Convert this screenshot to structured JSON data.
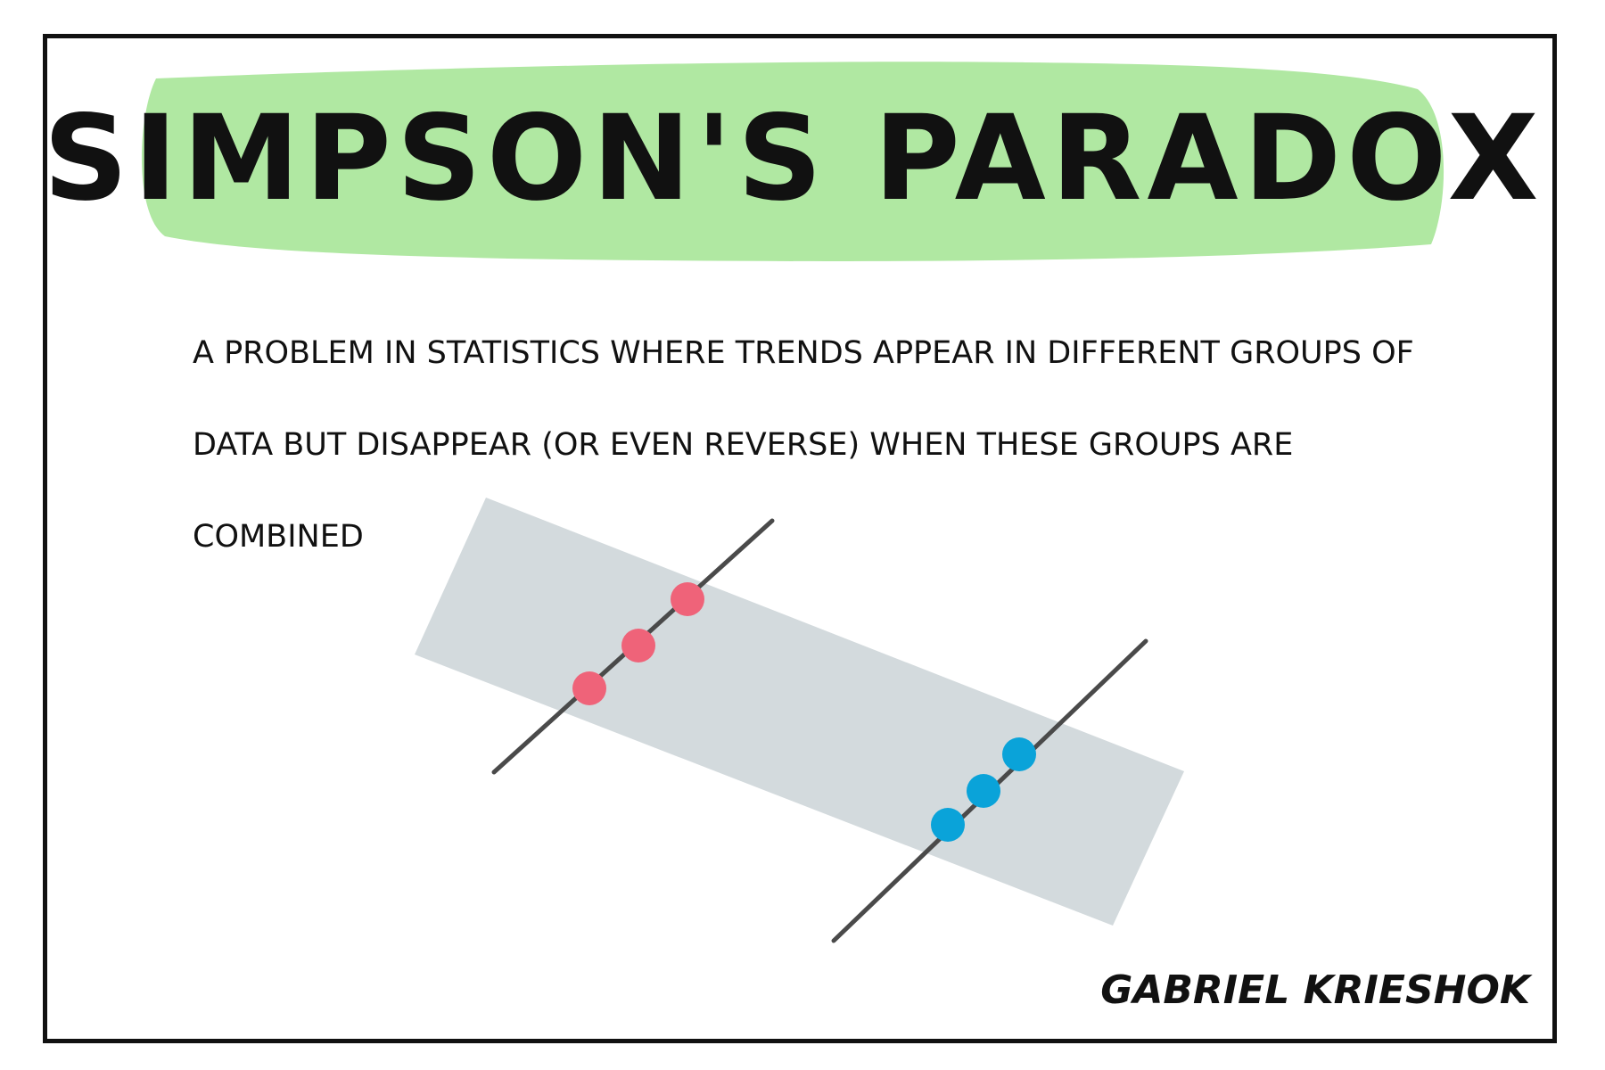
{
  "title": "SIMPSON'S PARADOX",
  "definition": "A PROBLEM IN STATISTICS WHERE TRENDS APPEAR IN DIFFERENT GROUPS OF DATA BUT DISAPPEAR (OR EVEN REVERSE) WHEN THESE GROUPS ARE COMBINED",
  "author": "GABRIEL KRIESHOK",
  "colors": {
    "title_highlight": "#b0e8a2",
    "combined_band": "#d3dadd",
    "trend_line": "#4a4a4a",
    "group_a": "#ef6379",
    "group_b": "#0aa3d9",
    "ink": "#111111",
    "border": "#111111"
  },
  "diagram": {
    "groups": [
      {
        "color_key": "group_a",
        "points": 3,
        "trend": "positive"
      },
      {
        "color_key": "group_b",
        "points": 3,
        "trend": "positive"
      }
    ],
    "combined_trend": "negative"
  }
}
